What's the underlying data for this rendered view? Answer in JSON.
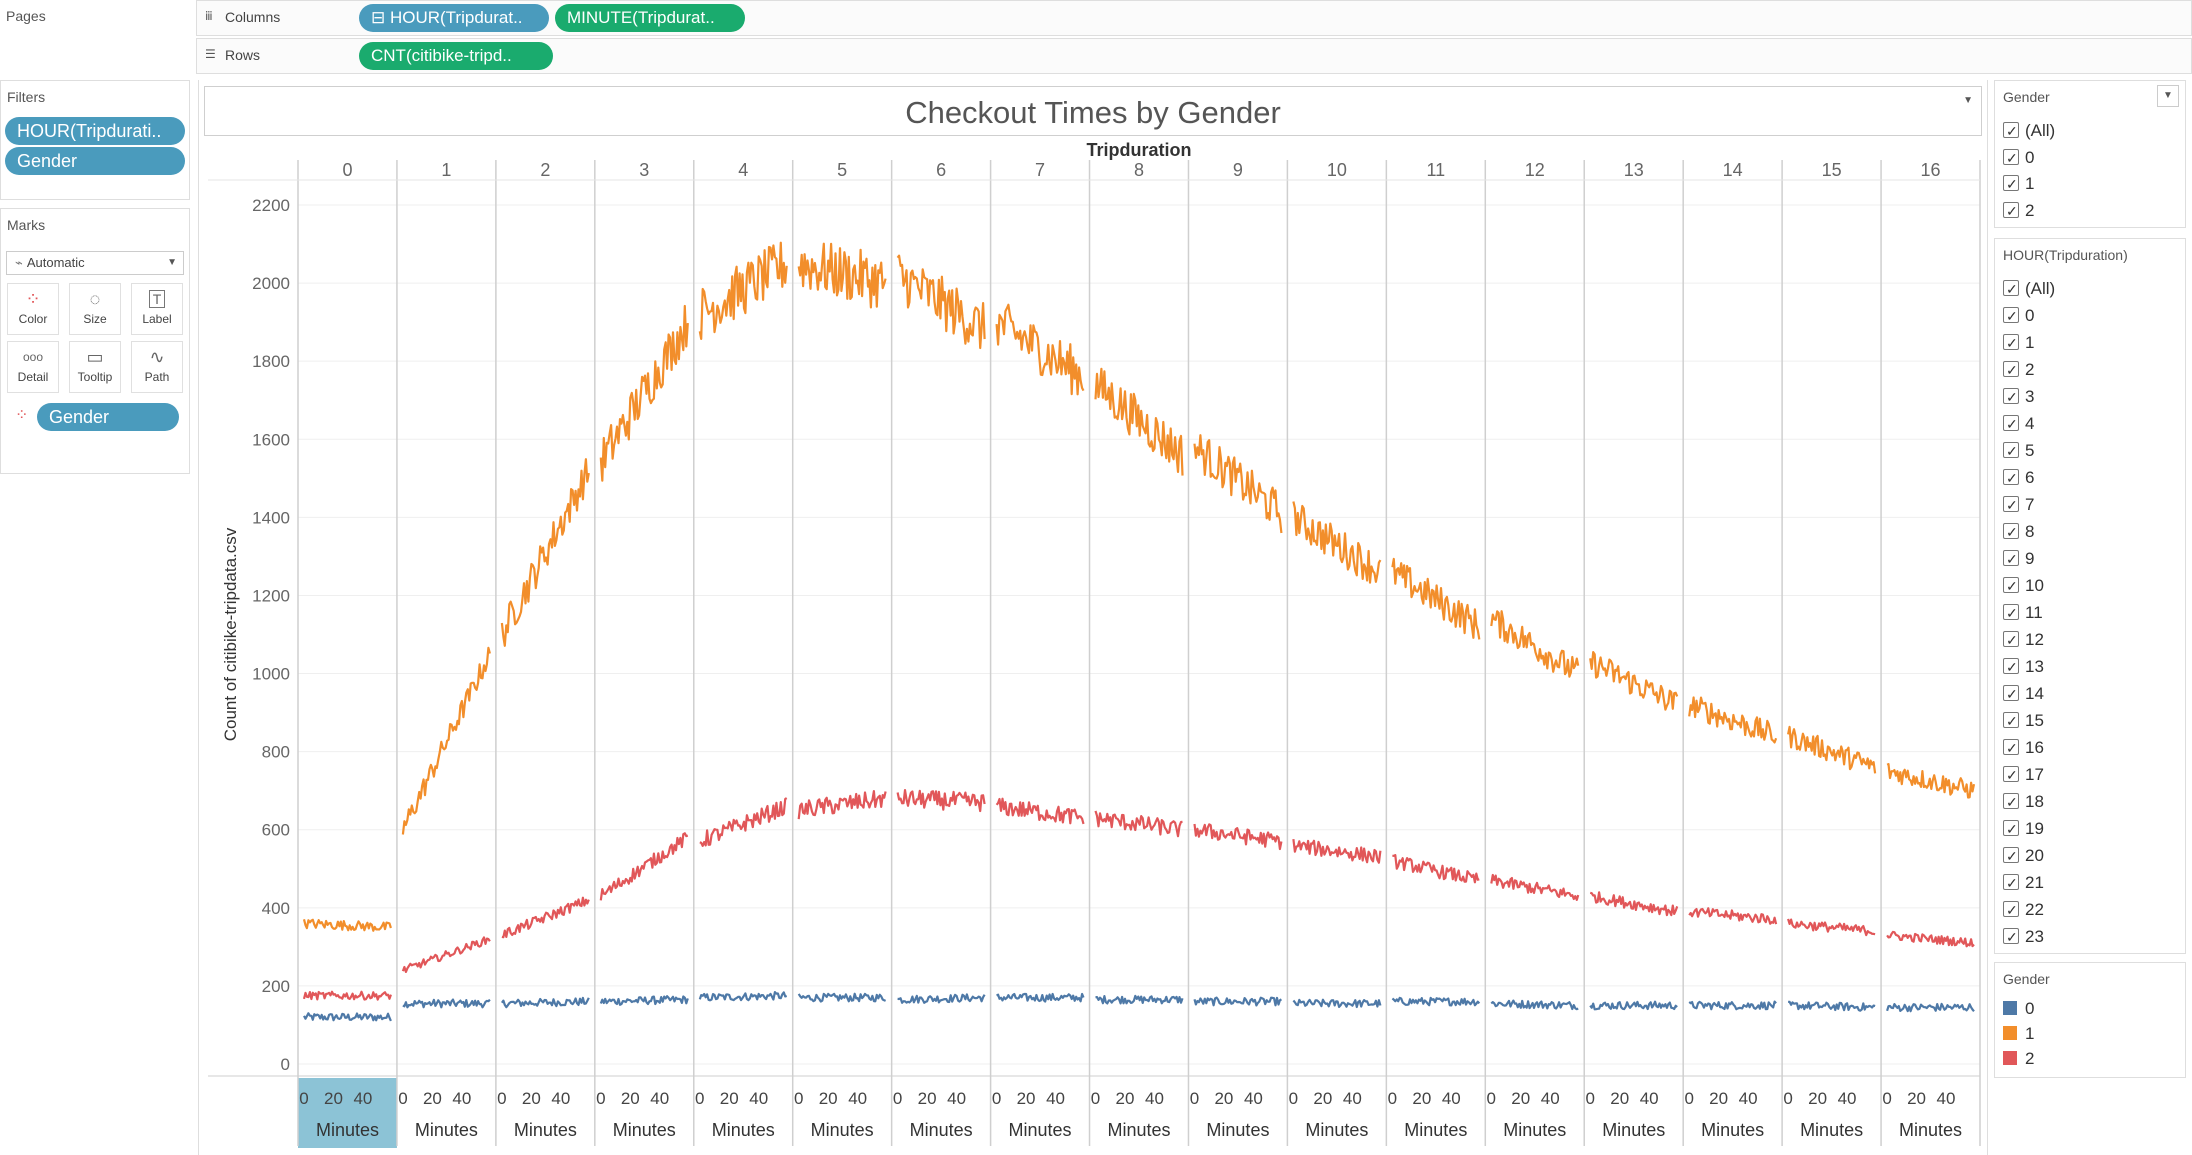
{
  "pages": {
    "label": "Pages"
  },
  "columns_shelf": {
    "label": "Columns",
    "pills": [
      {
        "label": "⊟ HOUR(Tripdurat..",
        "color": "#4a9bbd"
      },
      {
        "label": "MINUTE(Tripdurat..",
        "color": "#1aab6e"
      }
    ]
  },
  "rows_shelf": {
    "label": "Rows",
    "pills": [
      {
        "label": "CNT(citibike-tripd..",
        "color": "#1aab6e"
      }
    ]
  },
  "filters": {
    "label": "Filters",
    "pills": [
      {
        "label": "HOUR(Tripdurati.."
      },
      {
        "label": "Gender"
      }
    ]
  },
  "marks": {
    "label": "Marks",
    "type_dropdown": "Automatic",
    "buttons": [
      "Color",
      "Size",
      "Label",
      "Detail",
      "Tooltip",
      "Path"
    ],
    "field_pill": "Gender"
  },
  "filter_gender": {
    "title": "Gender",
    "items": [
      "(All)",
      "0",
      "1",
      "2"
    ]
  },
  "filter_hour": {
    "title": "HOUR(Tripduration)",
    "items": [
      "(All)",
      "0",
      "1",
      "2",
      "3",
      "4",
      "5",
      "6",
      "7",
      "8",
      "9",
      "10",
      "11",
      "12",
      "13",
      "14",
      "15",
      "16",
      "17",
      "18",
      "19",
      "20",
      "21",
      "22",
      "23"
    ]
  },
  "color_legend": {
    "title": "Gender",
    "items": [
      {
        "label": "0",
        "color": "#4e79a7"
      },
      {
        "label": "1",
        "color": "#f28e2b"
      },
      {
        "label": "2",
        "color": "#e15759"
      }
    ]
  },
  "chart_data": {
    "type": "line",
    "title": "Checkout Times by Gender",
    "column_header": "Tripduration",
    "panes": [
      "0",
      "1",
      "2",
      "3",
      "4",
      "5",
      "6",
      "7",
      "8",
      "9",
      "10",
      "11",
      "12",
      "13",
      "14",
      "15",
      "16"
    ],
    "ylabel": "Count of citibike-tripdata.csv",
    "ylim": [
      0,
      2200
    ],
    "yticks": [
      0,
      200,
      400,
      600,
      800,
      1000,
      1200,
      1400,
      1600,
      1800,
      2000,
      2200
    ],
    "xlabel": "Minutes",
    "xticks": [
      "0",
      "20",
      "40"
    ],
    "xlim_per_pane": [
      0,
      59
    ],
    "grid": true,
    "series": [
      {
        "name": "0",
        "color": "#4e79a7",
        "hour_start": [
          120,
          155,
          155,
          160,
          170,
          170,
          165,
          170,
          165,
          160,
          155,
          160,
          155,
          150,
          150,
          150,
          145
        ],
        "hour_end": [
          120,
          155,
          160,
          165,
          175,
          170,
          170,
          170,
          165,
          160,
          155,
          160,
          150,
          150,
          150,
          145,
          145
        ]
      },
      {
        "name": "1",
        "color": "#f28e2b",
        "hour_start": [
          360,
          600,
          1100,
          1540,
          1920,
          2050,
          2020,
          1900,
          1740,
          1580,
          1400,
          1260,
          1140,
          1030,
          920,
          840,
          750
        ],
        "hour_end": [
          350,
          1050,
          1520,
          1900,
          2050,
          2000,
          1880,
          1760,
          1560,
          1410,
          1260,
          1120,
          1000,
          920,
          840,
          760,
          700
        ]
      },
      {
        "name": "2",
        "color": "#e15759",
        "hour_start": [
          175,
          240,
          330,
          430,
          570,
          650,
          680,
          660,
          630,
          600,
          560,
          520,
          470,
          430,
          390,
          360,
          330
        ],
        "hour_end": [
          175,
          320,
          420,
          580,
          660,
          680,
          670,
          630,
          600,
          570,
          530,
          470,
          430,
          390,
          370,
          340,
          310
        ]
      }
    ]
  }
}
